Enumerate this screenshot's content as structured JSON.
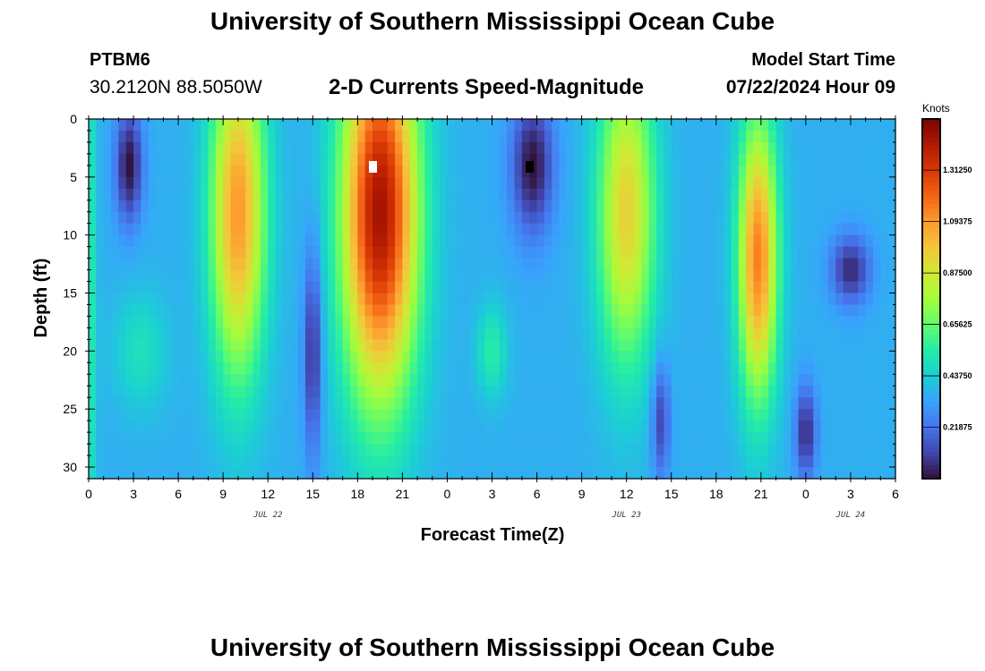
{
  "header": {
    "title": "University of Southern Mississippi Ocean Cube",
    "station_id": "PTBM6",
    "coords": "30.2120N  88.5050W",
    "chart_title": "2-D Currents Speed-Magnitude",
    "model_start_label": "Model Start Time",
    "model_start_value": "07/22/2024 Hour 09"
  },
  "footer": {
    "title": "University of Southern Mississippi Ocean Cube"
  },
  "colors": {
    "ramp": [
      "#30123b",
      "#4145ab",
      "#4675ed",
      "#39a2fc",
      "#1bcfd4",
      "#24eca6",
      "#61fc6c",
      "#a4fc3b",
      "#d1e834",
      "#f3c63a",
      "#fe9b2d",
      "#f36315",
      "#d93806",
      "#b11901",
      "#7a0403"
    ],
    "white_marker": "#ffffff",
    "black_marker": "#000000"
  },
  "chart_data": {
    "type": "heatmap",
    "title": "2-D Currents Speed-Magnitude",
    "xlabel": "Forecast Time(Z)",
    "ylabel": "Depth (ft)",
    "x_range_hours": [
      0,
      54
    ],
    "y_range_ft": [
      0,
      31
    ],
    "x_tick_labels": [
      "0",
      "3",
      "6",
      "9",
      "12",
      "15",
      "18",
      "21",
      "0",
      "3",
      "6",
      "9",
      "12",
      "15",
      "18",
      "21",
      "0",
      "3",
      "6"
    ],
    "y_tick_labels": [
      "0",
      "5",
      "10",
      "15",
      "20",
      "25",
      "30"
    ],
    "date_labels": [
      {
        "text": "JUL 22",
        "hour": 12
      },
      {
        "text": "JUL 23",
        "hour": 36
      },
      {
        "text": "JUL 24",
        "hour": 51
      }
    ],
    "colorbar": {
      "unit": "Knots",
      "range": [
        0,
        1.53
      ],
      "tick_labels": [
        "1.31250",
        "1.09375",
        "0.87500",
        "0.65625",
        "0.43750",
        "0.21875"
      ],
      "tick_values": [
        1.3125,
        1.09375,
        0.875,
        0.65625,
        0.4375,
        0.21875
      ]
    },
    "speed_features_knots": [
      {
        "hour": 0.0,
        "depth_ft": 15,
        "speed": 0.55,
        "width_h": 0.5,
        "depth_width_ft": 30
      },
      {
        "hour": 2.7,
        "depth_ft": 4,
        "speed": 0.0,
        "width_h": 0.9,
        "depth_width_ft": 5
      },
      {
        "hour": 3.5,
        "depth_ft": 20,
        "speed": 0.5,
        "width_h": 1.8,
        "depth_width_ft": 5
      },
      {
        "hour": 10.0,
        "depth_ft": 8,
        "speed": 1.1,
        "width_h": 1.8,
        "depth_width_ft": 14
      },
      {
        "hour": 15.0,
        "depth_ft": 20,
        "speed": 0.05,
        "width_h": 0.6,
        "depth_width_ft": 9
      },
      {
        "hour": 19.5,
        "depth_ft": 8,
        "speed": 1.45,
        "width_h": 2.5,
        "depth_width_ft": 16
      },
      {
        "hour": 27.0,
        "depth_ft": 20,
        "speed": 0.55,
        "width_h": 1.0,
        "depth_width_ft": 4
      },
      {
        "hour": 29.7,
        "depth_ft": 4,
        "speed": 0.0,
        "width_h": 1.4,
        "depth_width_ft": 6
      },
      {
        "hour": 36.0,
        "depth_ft": 8,
        "speed": 0.95,
        "width_h": 1.9,
        "depth_width_ft": 13
      },
      {
        "hour": 38.3,
        "depth_ft": 26,
        "speed": 0.1,
        "width_h": 0.6,
        "depth_width_ft": 5
      },
      {
        "hour": 44.8,
        "depth_ft": 12,
        "speed": 1.15,
        "width_h": 1.3,
        "depth_width_ft": 12
      },
      {
        "hour": 48.0,
        "depth_ft": 27,
        "speed": 0.05,
        "width_h": 0.7,
        "depth_width_ft": 4
      },
      {
        "hour": 51.0,
        "depth_ft": 13,
        "speed": 0.05,
        "width_h": 1.3,
        "depth_width_ft": 3
      }
    ]
  }
}
